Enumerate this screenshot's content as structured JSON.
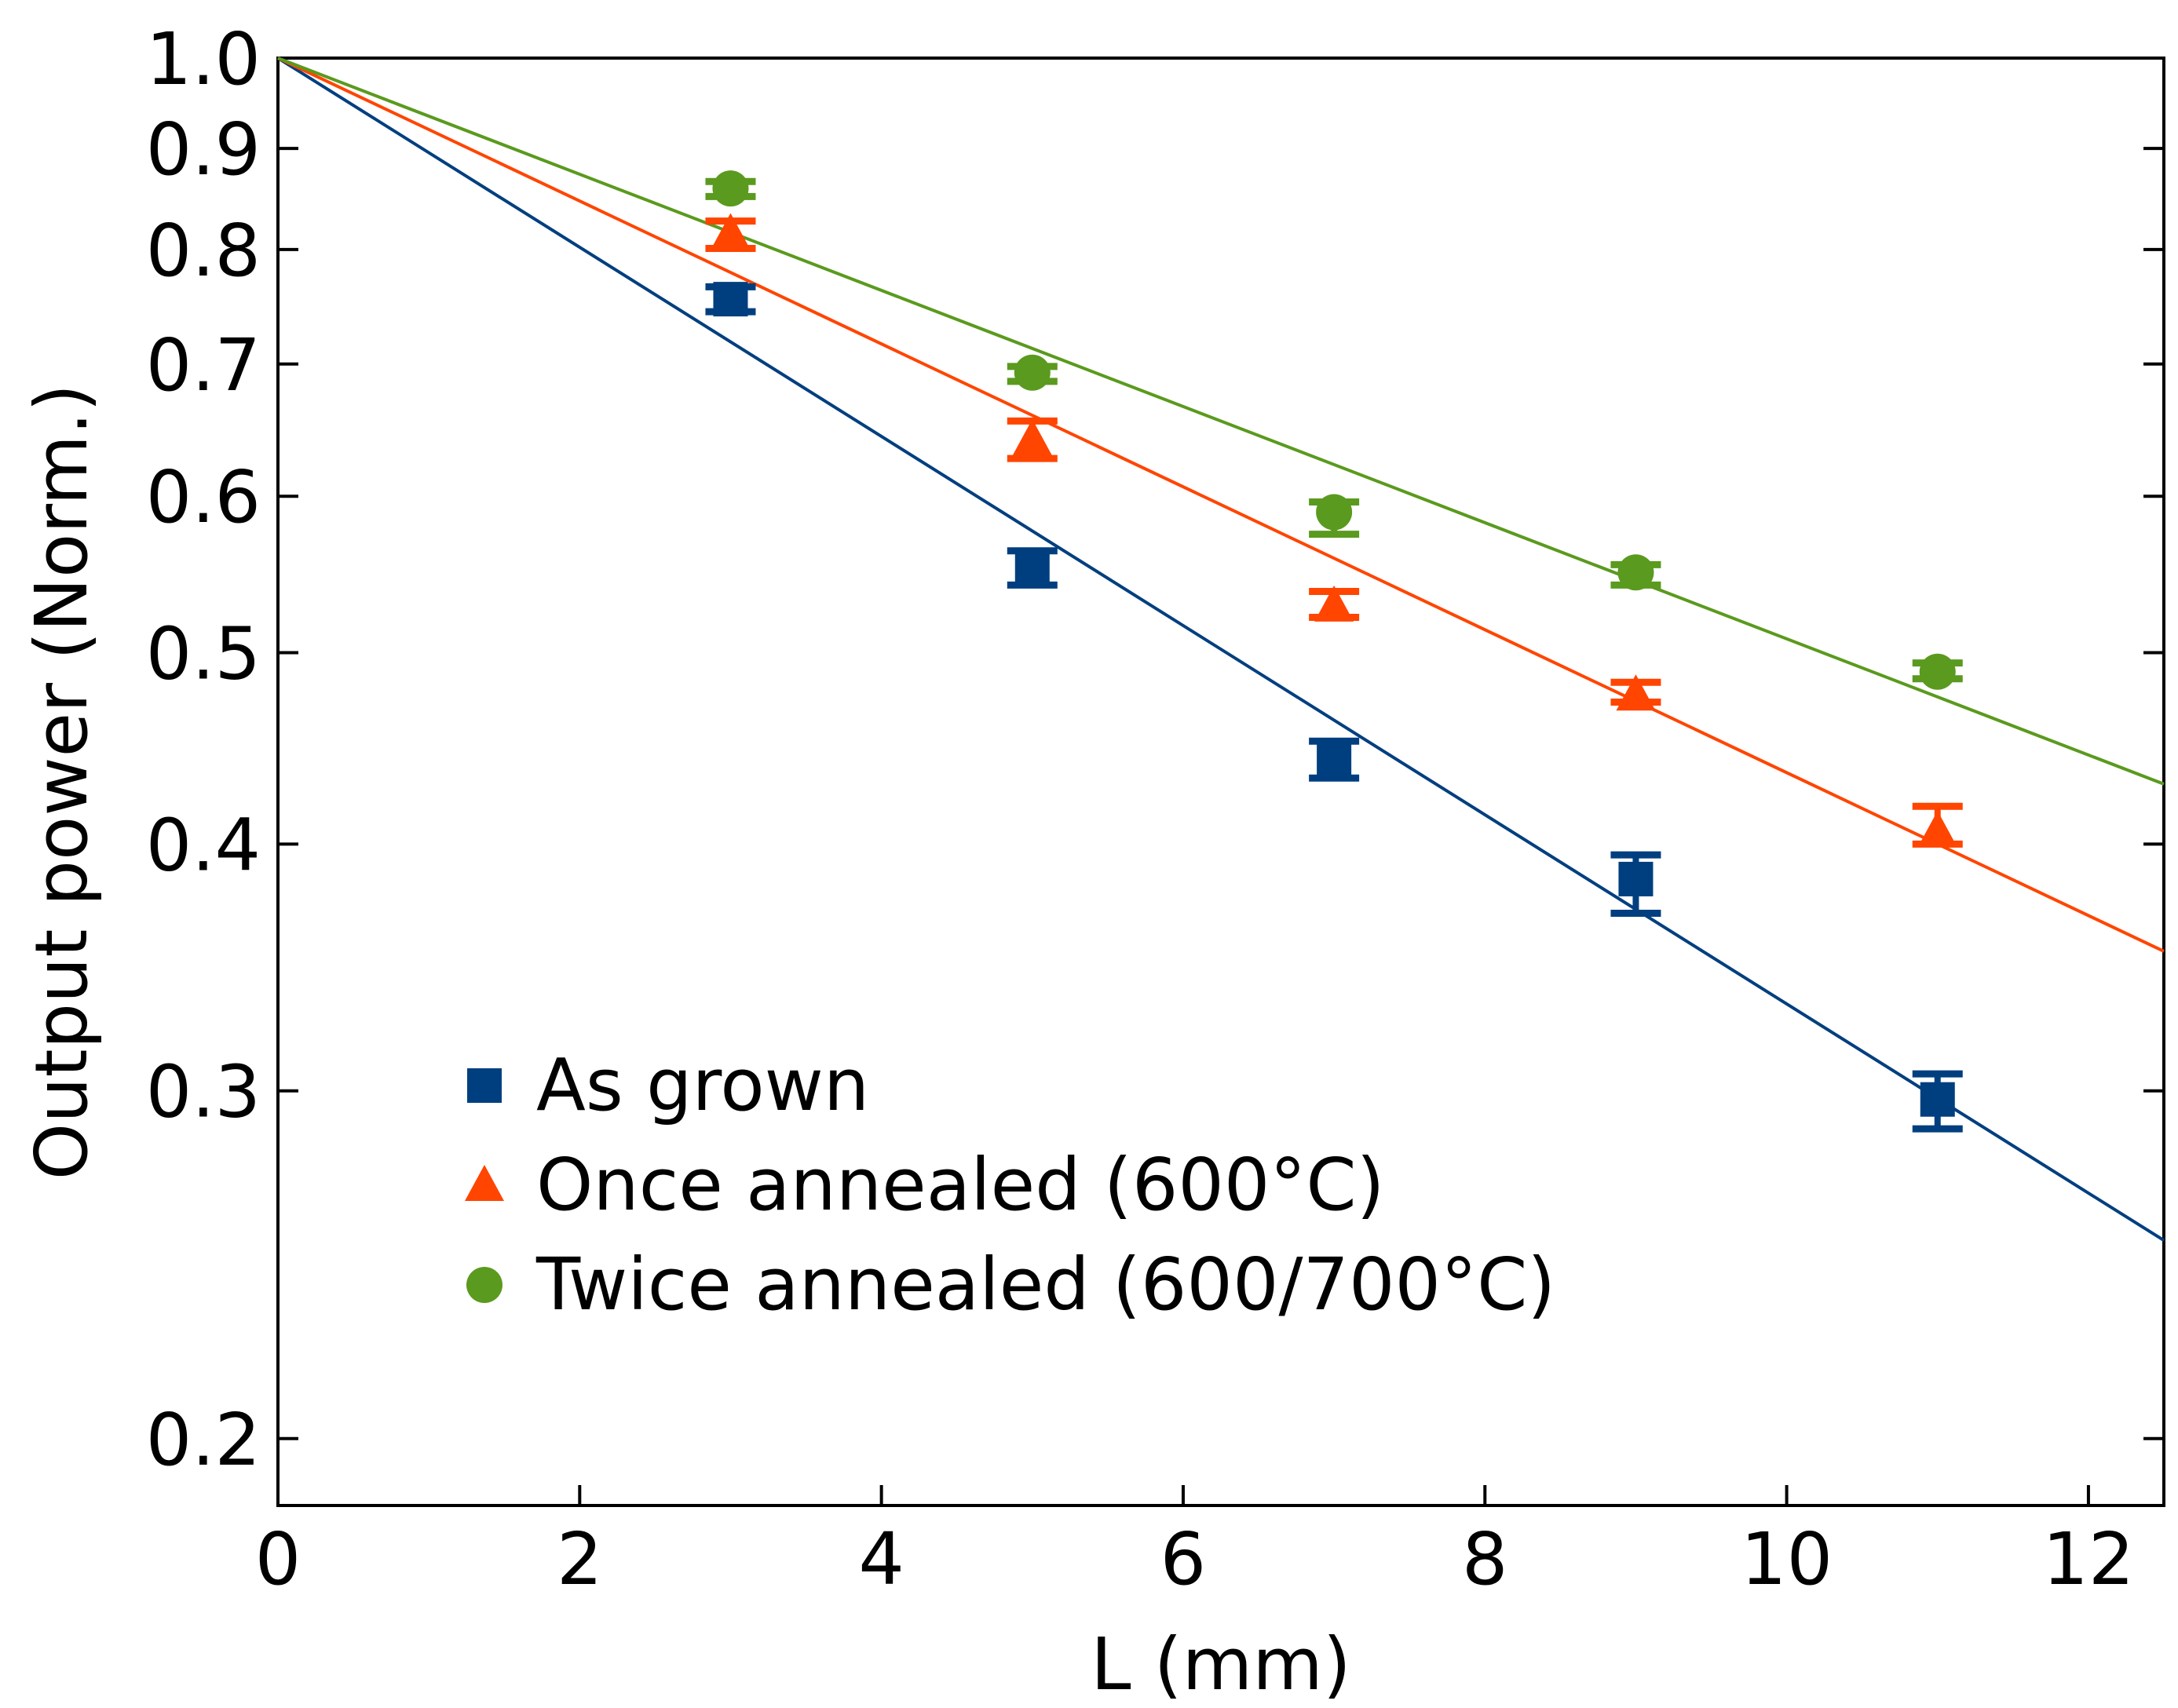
{
  "chart_data": {
    "type": "scatter",
    "xlabel": "L (mm)",
    "ylabel": "Output power (Norm.)",
    "xlim": [
      0,
      12.5
    ],
    "ylim": [
      0.185,
      1.0
    ],
    "yscale": "log",
    "xticks": [
      0,
      2,
      4,
      6,
      8,
      10,
      12
    ],
    "xtick_labels": [
      "0",
      "2",
      "4",
      "6",
      "8",
      "10",
      "12"
    ],
    "yticks": [
      0.2,
      0.3,
      0.4,
      0.5,
      0.6,
      0.7,
      0.8,
      0.9,
      1.0
    ],
    "ytick_labels": [
      "0.2",
      "0.3",
      "0.4",
      "0.5",
      "0.6",
      "0.7",
      "0.8",
      "0.9",
      "1.0"
    ],
    "grid": false,
    "legend_position": "lower-left",
    "series": [
      {
        "name": "As grown",
        "marker": "square",
        "color": "#003F7F",
        "x": [
          3,
          5,
          7,
          9,
          11
        ],
        "y": [
          0.755,
          0.551,
          0.441,
          0.384,
          0.297
        ],
        "yerr_low": [
          0.744,
          0.541,
          0.432,
          0.369,
          0.287
        ],
        "yerr_high": [
          0.766,
          0.563,
          0.451,
          0.395,
          0.306
        ],
        "fit_line": {
          "x": [
            0,
            12.5
          ],
          "y": [
            1.0,
            0.252
          ]
        }
      },
      {
        "name": "Once annealed (600°C)",
        "marker": "triangle",
        "color": "#FF4500",
        "x": [
          3,
          5,
          7,
          9,
          11
        ],
        "y": [
          0.815,
          0.641,
          0.528,
          0.476,
          0.406
        ],
        "yerr_low": [
          0.801,
          0.627,
          0.521,
          0.472,
          0.4
        ],
        "yerr_high": [
          0.827,
          0.655,
          0.537,
          0.483,
          0.418
        ],
        "fit_line": {
          "x": [
            0,
            12.5
          ],
          "y": [
            1.0,
            0.353
          ]
        }
      },
      {
        "name": "Twice annealed (600/700°C)",
        "marker": "circle",
        "color": "#5A9A1E",
        "x": [
          3,
          5,
          7,
          9,
          11
        ],
        "y": [
          0.859,
          0.693,
          0.589,
          0.549,
          0.489
        ],
        "yerr_low": [
          0.851,
          0.686,
          0.574,
          0.541,
          0.485
        ],
        "yerr_high": [
          0.866,
          0.698,
          0.596,
          0.554,
          0.494
        ],
        "fit_line": {
          "x": [
            0,
            12.5
          ],
          "y": [
            1.0,
            0.429
          ]
        }
      }
    ]
  }
}
